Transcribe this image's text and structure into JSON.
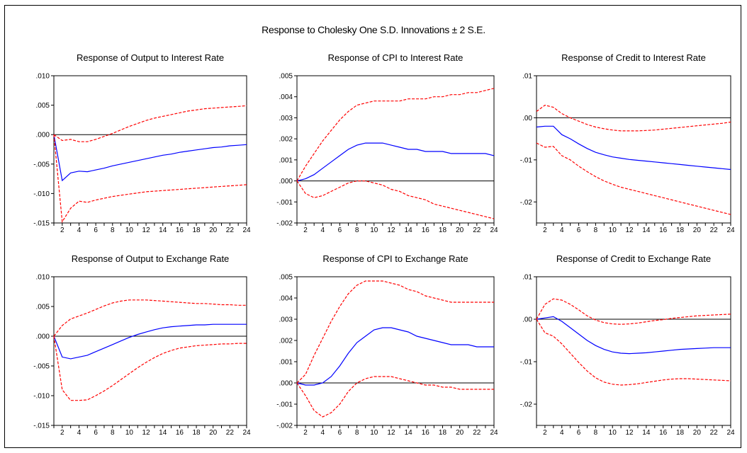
{
  "title": "Response to Cholesky One S.D. Innovations ± 2 S.E.",
  "colors": {
    "response": "#0000ff",
    "band": "#ff0000",
    "zero": "#000000"
  },
  "chart_data": [
    {
      "type": "line",
      "title": "Response of Output to Interest Rate",
      "x": [
        1,
        2,
        3,
        4,
        5,
        6,
        7,
        8,
        9,
        10,
        11,
        12,
        13,
        14,
        15,
        16,
        17,
        18,
        19,
        20,
        21,
        22,
        23,
        24
      ],
      "xticks": [
        2,
        4,
        6,
        8,
        10,
        12,
        14,
        16,
        18,
        20,
        22,
        24
      ],
      "ylim": [
        -0.015,
        0.01
      ],
      "yticks": [
        ".010",
        ".005",
        ".000",
        "-.005",
        "-.010",
        "-.015"
      ],
      "ytick_values": [
        0.01,
        0.005,
        0.0,
        -0.005,
        -0.01,
        -0.015
      ],
      "series": [
        {
          "role": "response",
          "values": [
            0,
            -0.0078,
            -0.0065,
            -0.0062,
            -0.0063,
            -0.006,
            -0.0057,
            -0.0053,
            -0.005,
            -0.0047,
            -0.0044,
            -0.0041,
            -0.0038,
            -0.0035,
            -0.0033,
            -0.003,
            -0.0028,
            -0.0026,
            -0.0024,
            -0.0022,
            -0.0021,
            -0.0019,
            -0.0018,
            -0.0017
          ]
        },
        {
          "role": "upper",
          "values": [
            0,
            -0.001,
            -0.0008,
            -0.0012,
            -0.0012,
            -0.0008,
            -0.0003,
            0.0002,
            0.0008,
            0.0014,
            0.0019,
            0.0024,
            0.0028,
            0.0031,
            0.0034,
            0.0037,
            0.004,
            0.0042,
            0.0044,
            0.0045,
            0.0046,
            0.0047,
            0.0048,
            0.0049
          ]
        },
        {
          "role": "lower",
          "values": [
            0,
            -0.0148,
            -0.0125,
            -0.0113,
            -0.0115,
            -0.0111,
            -0.0108,
            -0.0105,
            -0.0103,
            -0.0101,
            -0.0099,
            -0.0097,
            -0.0096,
            -0.0095,
            -0.0094,
            -0.0093,
            -0.0092,
            -0.0091,
            -0.009,
            -0.0089,
            -0.0088,
            -0.0087,
            -0.0086,
            -0.0085
          ]
        }
      ]
    },
    {
      "type": "line",
      "title": "Response of CPI to Interest Rate",
      "x": [
        1,
        2,
        3,
        4,
        5,
        6,
        7,
        8,
        9,
        10,
        11,
        12,
        13,
        14,
        15,
        16,
        17,
        18,
        19,
        20,
        21,
        22,
        23,
        24
      ],
      "xticks": [
        2,
        4,
        6,
        8,
        10,
        12,
        14,
        16,
        18,
        20,
        22,
        24
      ],
      "ylim": [
        -0.002,
        0.005
      ],
      "yticks": [
        ".005",
        ".004",
        ".003",
        ".002",
        ".001",
        ".000",
        "-.001",
        "-.002"
      ],
      "ytick_values": [
        0.005,
        0.004,
        0.003,
        0.002,
        0.001,
        0.0,
        -0.001,
        -0.002
      ],
      "series": [
        {
          "role": "response",
          "values": [
            0,
            0.0001,
            0.0003,
            0.0006,
            0.0009,
            0.0012,
            0.0015,
            0.0017,
            0.0018,
            0.0018,
            0.0018,
            0.0017,
            0.0016,
            0.0015,
            0.0015,
            0.0014,
            0.0014,
            0.0014,
            0.0013,
            0.0013,
            0.0013,
            0.0013,
            0.0013,
            0.0012
          ]
        },
        {
          "role": "upper",
          "values": [
            0,
            0.0007,
            0.0013,
            0.0019,
            0.0024,
            0.0029,
            0.0033,
            0.0036,
            0.0037,
            0.0038,
            0.0038,
            0.0038,
            0.0038,
            0.0039,
            0.0039,
            0.0039,
            0.004,
            0.004,
            0.0041,
            0.0041,
            0.0042,
            0.0042,
            0.0043,
            0.0044
          ]
        },
        {
          "role": "lower",
          "values": [
            0,
            -0.0006,
            -0.0008,
            -0.0007,
            -0.0005,
            -0.0003,
            -0.0001,
            0.0,
            0.0,
            -0.0001,
            -0.0002,
            -0.0004,
            -0.0005,
            -0.0007,
            -0.0008,
            -0.0009,
            -0.0011,
            -0.0012,
            -0.0013,
            -0.0014,
            -0.0015,
            -0.0016,
            -0.0017,
            -0.0018
          ]
        }
      ]
    },
    {
      "type": "line",
      "title": "Response of Credit to Interest Rate",
      "x": [
        1,
        2,
        3,
        4,
        5,
        6,
        7,
        8,
        9,
        10,
        11,
        12,
        13,
        14,
        15,
        16,
        17,
        18,
        19,
        20,
        21,
        22,
        23,
        24
      ],
      "xticks": [
        2,
        4,
        6,
        8,
        10,
        12,
        14,
        16,
        18,
        20,
        22,
        24
      ],
      "ylim": [
        -0.025,
        0.01
      ],
      "yticks": [
        ".01",
        ".00",
        "-.01",
        "-.02"
      ],
      "ytick_values": [
        0.01,
        0.0,
        -0.01,
        -0.02
      ],
      "series": [
        {
          "role": "response",
          "values": [
            -0.0022,
            -0.002,
            -0.002,
            -0.004,
            -0.005,
            -0.0062,
            -0.0073,
            -0.0082,
            -0.0088,
            -0.0093,
            -0.0096,
            -0.0099,
            -0.0101,
            -0.0103,
            -0.0105,
            -0.0107,
            -0.0109,
            -0.0111,
            -0.0113,
            -0.0115,
            -0.0117,
            -0.0119,
            -0.0121,
            -0.0123
          ]
        },
        {
          "role": "upper",
          "values": [
            0.0015,
            0.003,
            0.0025,
            0.001,
            0.0,
            -0.0008,
            -0.0016,
            -0.0022,
            -0.0026,
            -0.0029,
            -0.0031,
            -0.0031,
            -0.0031,
            -0.003,
            -0.0029,
            -0.0027,
            -0.0025,
            -0.0023,
            -0.0021,
            -0.0019,
            -0.0017,
            -0.0015,
            -0.0013,
            -0.001
          ]
        },
        {
          "role": "lower",
          "values": [
            -0.006,
            -0.007,
            -0.0068,
            -0.009,
            -0.01,
            -0.0115,
            -0.0128,
            -0.014,
            -0.015,
            -0.0158,
            -0.0165,
            -0.017,
            -0.0175,
            -0.018,
            -0.0185,
            -0.019,
            -0.0195,
            -0.02,
            -0.0205,
            -0.021,
            -0.0215,
            -0.022,
            -0.0225,
            -0.023
          ]
        }
      ]
    },
    {
      "type": "line",
      "title": "Response of Output to Exchange Rate",
      "x": [
        1,
        2,
        3,
        4,
        5,
        6,
        7,
        8,
        9,
        10,
        11,
        12,
        13,
        14,
        15,
        16,
        17,
        18,
        19,
        20,
        21,
        22,
        23,
        24
      ],
      "xticks": [
        2,
        4,
        6,
        8,
        10,
        12,
        14,
        16,
        18,
        20,
        22,
        24
      ],
      "ylim": [
        -0.015,
        0.01
      ],
      "yticks": [
        ".010",
        ".005",
        ".000",
        "-.005",
        "-.010",
        "-.015"
      ],
      "ytick_values": [
        0.01,
        0.005,
        0.0,
        -0.005,
        -0.01,
        -0.015
      ],
      "series": [
        {
          "role": "response",
          "values": [
            0,
            -0.0035,
            -0.0038,
            -0.0035,
            -0.0032,
            -0.0026,
            -0.002,
            -0.0014,
            -0.0008,
            -0.0002,
            0.0003,
            0.0007,
            0.0011,
            0.0014,
            0.0016,
            0.0017,
            0.0018,
            0.0019,
            0.0019,
            0.002,
            0.002,
            0.002,
            0.002,
            0.002
          ]
        },
        {
          "role": "upper",
          "values": [
            0,
            0.0018,
            0.0029,
            0.0034,
            0.0039,
            0.0045,
            0.0051,
            0.0056,
            0.0059,
            0.0061,
            0.0061,
            0.0061,
            0.006,
            0.0059,
            0.0058,
            0.0057,
            0.0056,
            0.0055,
            0.0055,
            0.0054,
            0.0053,
            0.0053,
            0.0052,
            0.0052
          ]
        },
        {
          "role": "lower",
          "values": [
            0,
            -0.009,
            -0.0108,
            -0.0108,
            -0.0107,
            -0.01,
            -0.0092,
            -0.0083,
            -0.0073,
            -0.0063,
            -0.0053,
            -0.0044,
            -0.0036,
            -0.0029,
            -0.0024,
            -0.002,
            -0.0018,
            -0.0016,
            -0.0015,
            -0.0014,
            -0.0013,
            -0.0013,
            -0.0012,
            -0.0012
          ]
        }
      ]
    },
    {
      "type": "line",
      "title": "Response of CPI to Exchange Rate",
      "x": [
        1,
        2,
        3,
        4,
        5,
        6,
        7,
        8,
        9,
        10,
        11,
        12,
        13,
        14,
        15,
        16,
        17,
        18,
        19,
        20,
        21,
        22,
        23,
        24
      ],
      "xticks": [
        2,
        4,
        6,
        8,
        10,
        12,
        14,
        16,
        18,
        20,
        22,
        24
      ],
      "ylim": [
        -0.002,
        0.005
      ],
      "yticks": [
        ".005",
        ".004",
        ".003",
        ".002",
        ".001",
        ".000",
        "-.001",
        "-.002"
      ],
      "ytick_values": [
        0.005,
        0.004,
        0.003,
        0.002,
        0.001,
        0.0,
        -0.001,
        -0.002
      ],
      "series": [
        {
          "role": "response",
          "values": [
            0,
            -0.0001,
            -0.0001,
            0.0,
            0.0003,
            0.0008,
            0.0014,
            0.0019,
            0.0022,
            0.0025,
            0.0026,
            0.0026,
            0.0025,
            0.0024,
            0.0022,
            0.0021,
            0.002,
            0.0019,
            0.0018,
            0.0018,
            0.0018,
            0.0017,
            0.0017,
            0.0017
          ]
        },
        {
          "role": "upper",
          "values": [
            0,
            0.0004,
            0.0013,
            0.0021,
            0.0029,
            0.0036,
            0.0042,
            0.0046,
            0.0048,
            0.0048,
            0.0048,
            0.0047,
            0.0046,
            0.0044,
            0.0043,
            0.0041,
            0.004,
            0.0039,
            0.0038,
            0.0038,
            0.0038,
            0.0038,
            0.0038,
            0.0038
          ]
        },
        {
          "role": "lower",
          "values": [
            0,
            -0.0006,
            -0.0013,
            -0.0016,
            -0.0014,
            -0.001,
            -0.0004,
            0.0,
            0.0002,
            0.0003,
            0.0003,
            0.0003,
            0.0002,
            0.0001,
            0.0,
            -0.0001,
            -0.0001,
            -0.0002,
            -0.0002,
            -0.0003,
            -0.0003,
            -0.0003,
            -0.0003,
            -0.0003
          ]
        }
      ]
    },
    {
      "type": "line",
      "title": "Response of Credit to Exchange Rate",
      "x": [
        1,
        2,
        3,
        4,
        5,
        6,
        7,
        8,
        9,
        10,
        11,
        12,
        13,
        14,
        15,
        16,
        17,
        18,
        19,
        20,
        21,
        22,
        23,
        24
      ],
      "xticks": [
        2,
        4,
        6,
        8,
        10,
        12,
        14,
        16,
        18,
        20,
        22,
        24
      ],
      "ylim": [
        -0.025,
        0.01
      ],
      "yticks": [
        ".01",
        ".00",
        "-.01",
        "-.02"
      ],
      "ytick_values": [
        0.01,
        0.0,
        -0.01,
        -0.02
      ],
      "series": [
        {
          "role": "response",
          "values": [
            0,
            0.0003,
            0.0006,
            -0.0005,
            -0.002,
            -0.0035,
            -0.005,
            -0.0062,
            -0.0071,
            -0.0077,
            -0.008,
            -0.0081,
            -0.008,
            -0.0079,
            -0.0077,
            -0.0075,
            -0.0073,
            -0.0071,
            -0.007,
            -0.0069,
            -0.0068,
            -0.0067,
            -0.0067,
            -0.0067
          ]
        },
        {
          "role": "upper",
          "values": [
            0,
            0.0035,
            0.0048,
            0.0045,
            0.0035,
            0.0022,
            0.0008,
            -0.0002,
            -0.0008,
            -0.0011,
            -0.0012,
            -0.0011,
            -0.0009,
            -0.0006,
            -0.0003,
            -0.0001,
            0.0002,
            0.0004,
            0.0006,
            0.0008,
            0.0009,
            0.001,
            0.0011,
            0.0012
          ]
        },
        {
          "role": "lower",
          "values": [
            0,
            -0.0032,
            -0.004,
            -0.0058,
            -0.008,
            -0.0102,
            -0.0122,
            -0.0138,
            -0.0148,
            -0.0153,
            -0.0155,
            -0.0154,
            -0.0152,
            -0.0149,
            -0.0146,
            -0.0143,
            -0.0141,
            -0.014,
            -0.014,
            -0.0141,
            -0.0142,
            -0.0143,
            -0.0144,
            -0.0145
          ]
        }
      ]
    }
  ]
}
